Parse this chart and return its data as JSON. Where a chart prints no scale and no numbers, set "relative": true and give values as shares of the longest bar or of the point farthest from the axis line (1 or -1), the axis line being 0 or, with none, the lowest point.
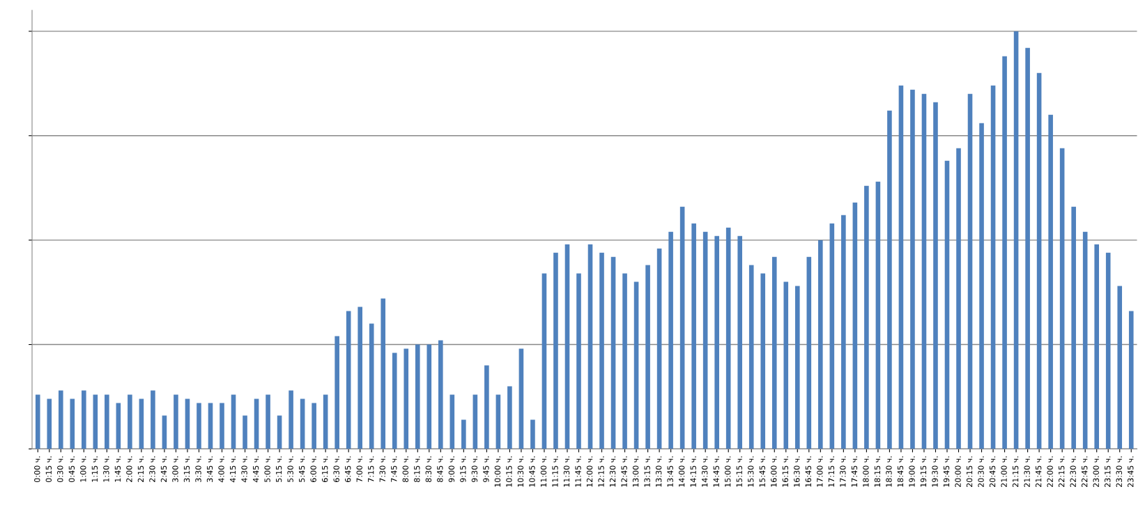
{
  "chart_data": {
    "type": "bar",
    "relative": true,
    "color": "#4f81bd",
    "grid": "y",
    "legend": false,
    "categories": [
      "0:00 ч.",
      "0:15 ч.",
      "0:30 ч.",
      "0:45 ч.",
      "1:00 ч.",
      "1:15 ч.",
      "1:30 ч.",
      "1:45 ч.",
      "2:00 ч.",
      "2:15 ч.",
      "2:30 ч.",
      "2:45 ч.",
      "3:00 ч.",
      "3:15 ч.",
      "3:30 ч.",
      "3:45 ч.",
      "4:00 ч.",
      "4:15 ч.",
      "4:30 ч.",
      "4:45 ч.",
      "5:00 ч.",
      "5:15 ч.",
      "5:30 ч.",
      "5:45 ч.",
      "6:00 ч.",
      "6:15 ч.",
      "6:30 ч.",
      "6:45 ч.",
      "7:00 ч.",
      "7:15 ч.",
      "7:30 ч.",
      "7:45 ч.",
      "8:00 ч.",
      "8:15 ч.",
      "8:30 ч.",
      "8:45 ч.",
      "9:00 ч.",
      "9:15 ч.",
      "9:30 ч.",
      "9:45 ч.",
      "10:00 ч.",
      "10:15 ч.",
      "10:30 ч.",
      "10:45 ч.",
      "11:00 ч.",
      "11:15 ч.",
      "11:30 ч.",
      "11:45 ч.",
      "12:00 ч.",
      "12:15 ч.",
      "12:30 ч.",
      "12:45 ч.",
      "13:00 ч.",
      "13:15 ч.",
      "13:30 ч.",
      "13:45 ч.",
      "14:00 ч.",
      "14:15 ч.",
      "14:30 ч.",
      "14:45 ч.",
      "15:00 ч.",
      "15:15 ч.",
      "15:30 ч.",
      "15:45 ч.",
      "16:00 ч.",
      "16:15 ч.",
      "16:30 ч.",
      "16:45 ч.",
      "17:00 ч.",
      "17:15 ч.",
      "17:30 ч.",
      "17:45 ч.",
      "18:00 ч.",
      "18:15 ч.",
      "18:30 ч.",
      "18:45 ч.",
      "19:00 ч.",
      "19:15 ч.",
      "19:30 ч.",
      "19:45 ч.",
      "20:00 ч.",
      "20:15 ч.",
      "20:30 ч.",
      "20:45 ч.",
      "21:00 ч.",
      "21:15 ч.",
      "21:30 ч.",
      "21:45 ч.",
      "22:00 ч.",
      "22:15 ч.",
      "22:30 ч.",
      "22:45 ч.",
      "23:00 ч.",
      "23:15 ч.",
      "23:30 ч.",
      "23:45 ч."
    ],
    "values": [
      0.13,
      0.12,
      0.14,
      0.12,
      0.14,
      0.13,
      0.13,
      0.11,
      0.13,
      0.12,
      0.14,
      0.08,
      0.13,
      0.12,
      0.11,
      0.11,
      0.11,
      0.13,
      0.08,
      0.12,
      0.13,
      0.08,
      0.14,
      0.12,
      0.11,
      0.13,
      0.27,
      0.33,
      0.34,
      0.3,
      0.36,
      0.23,
      0.24,
      0.25,
      0.25,
      0.26,
      0.13,
      0.07,
      0.13,
      0.2,
      0.13,
      0.15,
      0.24,
      0.07,
      0.42,
      0.47,
      0.49,
      0.42,
      0.49,
      0.47,
      0.46,
      0.42,
      0.4,
      0.44,
      0.48,
      0.52,
      0.58,
      0.54,
      0.52,
      0.51,
      0.53,
      0.51,
      0.44,
      0.42,
      0.46,
      0.4,
      0.39,
      0.46,
      0.5,
      0.54,
      0.56,
      0.59,
      0.63,
      0.64,
      0.81,
      0.87,
      0.86,
      0.85,
      0.83,
      0.69,
      0.72,
      0.85,
      0.78,
      0.87,
      0.94,
      1,
      0.96,
      0.9,
      0.8,
      0.72,
      0.58,
      0.52,
      0.49,
      0.47,
      0.39,
      0.33
    ]
  }
}
